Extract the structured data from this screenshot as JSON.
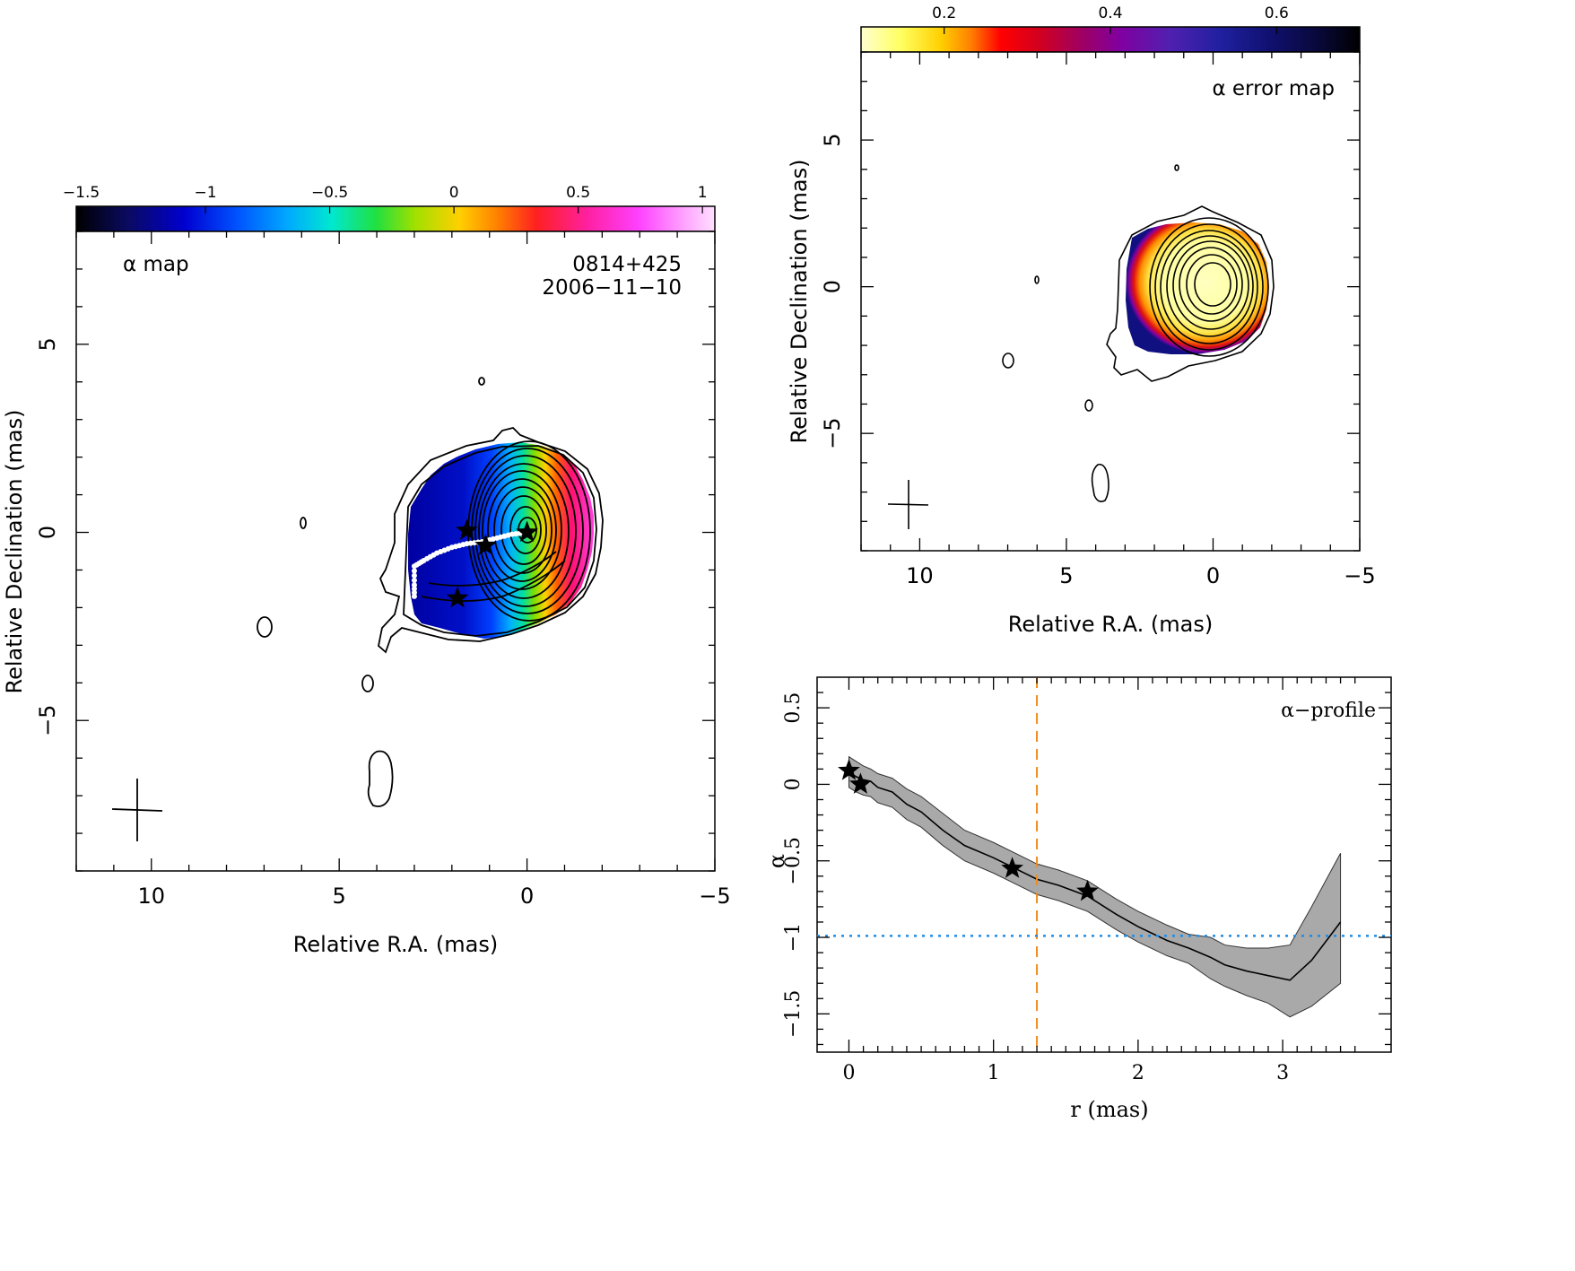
{
  "alpha_map": {
    "title": "α map",
    "source": "0814+425",
    "date": "2006−11−10",
    "xlabel": "Relative R.A. (mas)",
    "ylabel": "Relative Declination (mas)",
    "colorbar": {
      "ticks": [
        {
          "v": -1.5,
          "label": "−1.5"
        },
        {
          "v": -1,
          "label": "−1"
        },
        {
          "v": -0.5,
          "label": "−0.5"
        },
        {
          "v": 0,
          "label": "0"
        },
        {
          "v": 0.5,
          "label": "0.5"
        },
        {
          "v": 1,
          "label": "1"
        }
      ],
      "range": [
        -1.52,
        1.05
      ]
    }
  },
  "error_map": {
    "title": "α error map",
    "xlabel": "Relative R.A. (mas)",
    "ylabel": "Relative Declination (mas)",
    "colorbar": {
      "ticks": [
        {
          "v": 0.2,
          "label": "0.2"
        },
        {
          "v": 0.4,
          "label": "0.4"
        },
        {
          "v": 0.6,
          "label": "0.6"
        }
      ],
      "range": [
        0.1,
        0.7
      ]
    }
  },
  "profile": {
    "title": "α−profile",
    "xlabel": "r (mas)",
    "ylabel": "α"
  },
  "chart_data": [
    {
      "type": "heatmap",
      "name": "alpha_map",
      "xlim": [
        12,
        -5
      ],
      "ylim": [
        -9,
        8
      ],
      "xticks": [
        {
          "v": 10,
          "label": "10"
        },
        {
          "v": 5,
          "label": "5"
        },
        {
          "v": 0,
          "label": "0"
        },
        {
          "v": -5,
          "label": "−5"
        }
      ],
      "yticks": [
        {
          "v": 5,
          "label": "5"
        },
        {
          "v": 0,
          "label": "0"
        },
        {
          "v": -5,
          "label": "−5"
        }
      ],
      "colormap_range": [
        -1.52,
        1.05
      ],
      "stars": [
        [
          0,
          0
        ],
        [
          1.6,
          0.05
        ],
        [
          1.1,
          -0.35
        ],
        [
          1.85,
          -1.75
        ]
      ],
      "ridge_line": [
        [
          0,
          0
        ],
        [
          0.4,
          -0.05
        ],
        [
          0.8,
          -0.15
        ],
        [
          1.2,
          -0.25
        ],
        [
          1.6,
          -0.3
        ],
        [
          2.0,
          -0.4
        ],
        [
          2.4,
          -0.55
        ],
        [
          2.75,
          -0.75
        ],
        [
          3.0,
          -0.9
        ],
        [
          3.0,
          -1.4
        ],
        [
          3.0,
          -1.8
        ]
      ],
      "beam": {
        "center": [
          10.4,
          -7.5
        ]
      }
    },
    {
      "type": "heatmap",
      "name": "error_map",
      "xlim": [
        12,
        -5
      ],
      "ylim": [
        -9,
        8
      ],
      "xticks": [
        {
          "v": 10,
          "label": "10"
        },
        {
          "v": 5,
          "label": "5"
        },
        {
          "v": 0,
          "label": "0"
        },
        {
          "v": -5,
          "label": "−5"
        }
      ],
      "yticks": [
        {
          "v": 5,
          "label": "5"
        },
        {
          "v": 0,
          "label": "0"
        },
        {
          "v": -5,
          "label": "−5"
        }
      ],
      "colormap_range": [
        0.1,
        0.7
      ],
      "beam": {
        "center": [
          10.4,
          -7.5
        ]
      }
    },
    {
      "type": "line",
      "name": "alpha_profile",
      "xlim": [
        -0.22,
        3.75
      ],
      "ylim": [
        -1.75,
        0.7
      ],
      "xticks": [
        {
          "v": 0,
          "label": "0"
        },
        {
          "v": 1,
          "label": "1"
        },
        {
          "v": 2,
          "label": "2"
        },
        {
          "v": 3,
          "label": "3"
        }
      ],
      "yticks": [
        {
          "v": 0.5,
          "label": "0.5"
        },
        {
          "v": 0,
          "label": "0"
        },
        {
          "v": -0.5,
          "label": "−0.5"
        },
        {
          "v": -1,
          "label": "−1"
        },
        {
          "v": -1.5,
          "label": "−1.5"
        }
      ],
      "x": [
        0,
        0.05,
        0.1,
        0.15,
        0.2,
        0.3,
        0.4,
        0.5,
        0.65,
        0.8,
        1.0,
        1.15,
        1.3,
        1.45,
        1.65,
        1.85,
        2.0,
        2.2,
        2.35,
        2.5,
        2.6,
        2.75,
        2.9,
        3.05,
        3.2,
        3.4
      ],
      "y": [
        0.08,
        0.05,
        0.03,
        0.02,
        -0.02,
        -0.05,
        -0.13,
        -0.18,
        -0.3,
        -0.4,
        -0.48,
        -0.55,
        -0.62,
        -0.66,
        -0.73,
        -0.85,
        -0.93,
        -1.02,
        -1.07,
        -1.13,
        -1.18,
        -1.22,
        -1.25,
        -1.28,
        -1.15,
        -0.9
      ],
      "err_upper": [
        0.18,
        0.15,
        0.12,
        0.1,
        0.07,
        0.04,
        -0.03,
        -0.08,
        -0.19,
        -0.3,
        -0.38,
        -0.45,
        -0.52,
        -0.56,
        -0.63,
        -0.75,
        -0.83,
        -0.92,
        -0.98,
        -1.0,
        -1.05,
        -1.07,
        -1.07,
        -1.05,
        -0.8,
        -0.45
      ],
      "err_lower": [
        -0.02,
        -0.05,
        -0.07,
        -0.08,
        -0.12,
        -0.15,
        -0.23,
        -0.28,
        -0.4,
        -0.5,
        -0.58,
        -0.65,
        -0.72,
        -0.76,
        -0.83,
        -0.95,
        -1.03,
        -1.12,
        -1.17,
        -1.27,
        -1.32,
        -1.38,
        -1.43,
        -1.52,
        -1.45,
        -1.3
      ],
      "stars": [
        [
          0,
          0.09
        ],
        [
          0.08,
          0.0
        ],
        [
          1.13,
          -0.55
        ],
        [
          1.65,
          -0.7
        ]
      ],
      "vline": {
        "x": 1.3,
        "color": "#f08c1e"
      },
      "hline": {
        "y": -0.99,
        "color": "#1e8ce6"
      }
    }
  ]
}
